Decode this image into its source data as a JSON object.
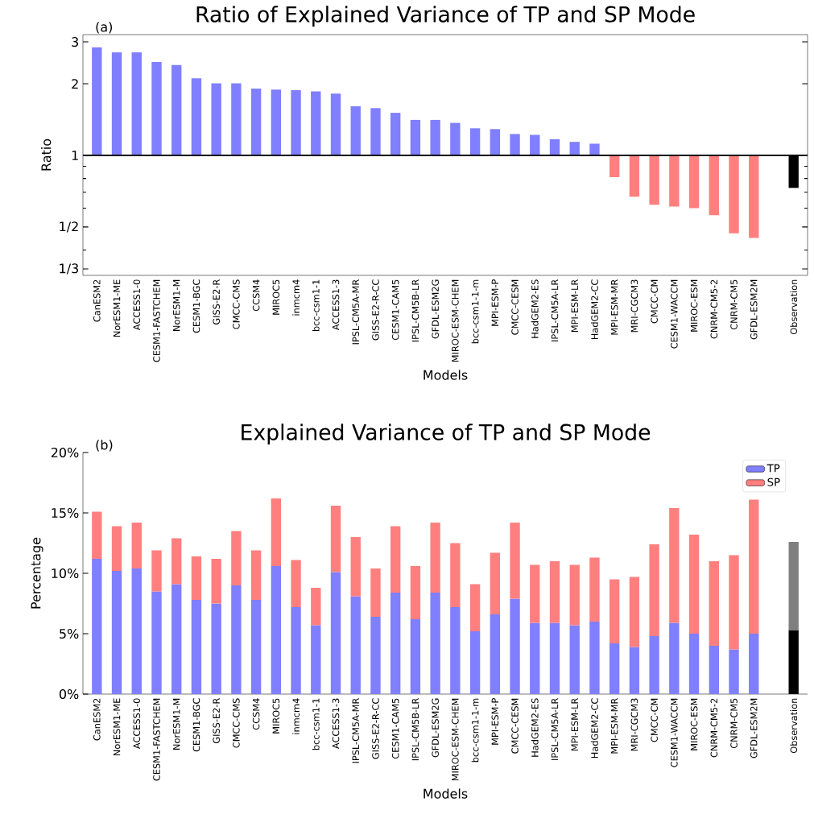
{
  "chart_data": [
    {
      "type": "bar",
      "title": "Ratio of Explained Variance of TP and SP Mode",
      "xlabel": "Models",
      "ylabel": "Ratio",
      "annotations": [
        "(a)"
      ],
      "categories": [
        "CanESM2",
        "NorESM1-ME",
        "ACCESS1-0",
        "CESM1-FASTCHEM",
        "NorESM1-M",
        "CESM1-BGC",
        "GISS-E2-R",
        "CMCC-CMS",
        "CCSM4",
        "MIROC5",
        "inmcm4",
        "bcc-csm1-1",
        "ACCESS1-3",
        "IPSL-CM5A-MR",
        "GISS-E2-R-CC",
        "CESM1-CAM5",
        "IPSL-CM5B-LR",
        "GFDL-ESM2G",
        "MIROC-ESM-CHEM",
        "bcc-csm1-1-m",
        "MPI-ESM-P",
        "CMCC-CESM",
        "HadGEM2-ES",
        "IPSL-CM5A-LR",
        "MPI-ESM-LR",
        "HadGEM2-CC",
        "MPI-ESM-MR",
        "MRI-CGCM3",
        "CMCC-CM",
        "CESM1-WACCM",
        "MIROC-ESM",
        "CNRM-CM5-2",
        "CNRM-CM5",
        "GFDL-ESM2M",
        null,
        "Observation"
      ],
      "values": [
        1.85,
        1.71,
        1.71,
        1.47,
        1.4,
        1.11,
        1.01,
        1.01,
        0.91,
        0.89,
        0.88,
        0.86,
        0.82,
        0.61,
        0.58,
        0.51,
        0.41,
        0.41,
        0.37,
        0.3,
        0.29,
        0.23,
        0.22,
        0.17,
        0.14,
        0.12,
        -0.19,
        -0.33,
        -0.38,
        -0.39,
        -0.4,
        -0.44,
        -0.53,
        -0.55,
        null,
        -0.27
      ],
      "colors": [
        "#7f7fff",
        "#7f7fff",
        "#7f7fff",
        "#7f7fff",
        "#7f7fff",
        "#7f7fff",
        "#7f7fff",
        "#7f7fff",
        "#7f7fff",
        "#7f7fff",
        "#7f7fff",
        "#7f7fff",
        "#7f7fff",
        "#7f7fff",
        "#7f7fff",
        "#7f7fff",
        "#7f7fff",
        "#7f7fff",
        "#7f7fff",
        "#7f7fff",
        "#7f7fff",
        "#7f7fff",
        "#7f7fff",
        "#7f7fff",
        "#7f7fff",
        "#7f7fff",
        "#ff7f7f",
        "#ff7f7f",
        "#ff7f7f",
        "#ff7f7f",
        "#ff7f7f",
        "#ff7f7f",
        "#ff7f7f",
        "#ff7f7f",
        null,
        "#000000"
      ],
      "base": [
        1,
        1,
        1,
        1,
        1,
        1,
        1,
        1,
        1,
        1,
        1,
        1,
        1,
        1,
        1,
        1,
        1,
        1,
        1,
        1,
        1,
        1,
        1,
        1,
        1,
        1,
        1,
        1,
        1,
        1,
        1,
        1,
        1,
        1,
        null,
        1
      ],
      "log": true,
      "ylim": [
        0.313,
        3.22
      ],
      "yticks": [
        {
          "value": 0.3333,
          "label": "1/3"
        },
        {
          "value": 0.4,
          "label": null
        },
        {
          "value": 0.5,
          "label": "1/2"
        },
        {
          "value": 0.6,
          "label": null
        },
        {
          "value": 0.7,
          "label": null
        },
        {
          "value": 0.8,
          "label": null
        },
        {
          "value": 0.9,
          "label": null
        },
        1,
        2,
        3
      ],
      "ref_lines": [
        {
          "axis": "y",
          "value": 1,
          "color": "#000000"
        }
      ]
    },
    {
      "type": "bar",
      "stacked": true,
      "title": "Explained Variance of TP and SP Mode",
      "xlabel": "Models",
      "ylabel": "Percentage",
      "annotations": [
        "(b)"
      ],
      "categories": [
        "CanESM2",
        "NorESM1-ME",
        "ACCESS1-0",
        "CESM1-FASTCHEM",
        "NorESM1-M",
        "CESM1-BGC",
        "GISS-E2-R",
        "CMCC-CMS",
        "CCSM4",
        "MIROC5",
        "inmcm4",
        "bcc-csm1-1",
        "ACCESS1-3",
        "IPSL-CM5A-MR",
        "GISS-E2-R-CC",
        "CESM1-CAM5",
        "IPSL-CM5B-LR",
        "GFDL-ESM2G",
        "MIROC-ESM-CHEM",
        "bcc-csm1-1-m",
        "MPI-ESM-P",
        "CMCC-CESM",
        "HadGEM2-ES",
        "IPSL-CM5A-LR",
        "MPI-ESM-LR",
        "HadGEM2-CC",
        "MPI-ESM-MR",
        "MRI-CGCM3",
        "CMCC-CM",
        "CESM1-WACCM",
        "MIROC-ESM",
        "CNRM-CM5-2",
        "CNRM-CM5",
        "GFDL-ESM2M",
        null,
        "Observation"
      ],
      "series": [
        {
          "name": "TP",
          "color": "#7f7fff",
          "colors": [
            "#7f7fff",
            "#7f7fff",
            "#7f7fff",
            "#7f7fff",
            "#7f7fff",
            "#7f7fff",
            "#7f7fff",
            "#7f7fff",
            "#7f7fff",
            "#7f7fff",
            "#7f7fff",
            "#7f7fff",
            "#7f7fff",
            "#7f7fff",
            "#7f7fff",
            "#7f7fff",
            "#7f7fff",
            "#7f7fff",
            "#7f7fff",
            "#7f7fff",
            "#7f7fff",
            "#7f7fff",
            "#7f7fff",
            "#7f7fff",
            "#7f7fff",
            "#7f7fff",
            "#7f7fff",
            "#7f7fff",
            "#7f7fff",
            "#7f7fff",
            "#7f7fff",
            "#7f7fff",
            "#7f7fff",
            "#7f7fff",
            null,
            "#000000"
          ],
          "values": [
            11.2,
            10.2,
            10.4,
            8.5,
            9.1,
            7.8,
            7.5,
            9.0,
            7.8,
            10.6,
            7.2,
            5.7,
            10.1,
            8.1,
            6.4,
            8.4,
            6.2,
            8.4,
            7.2,
            5.2,
            6.6,
            7.9,
            5.9,
            5.9,
            5.7,
            6.0,
            4.2,
            3.9,
            4.8,
            5.9,
            5.0,
            4.0,
            3.7,
            5.0,
            null,
            5.3
          ]
        },
        {
          "name": "SP",
          "color": "#ff7f7f",
          "colors": [
            "#ff7f7f",
            "#ff7f7f",
            "#ff7f7f",
            "#ff7f7f",
            "#ff7f7f",
            "#ff7f7f",
            "#ff7f7f",
            "#ff7f7f",
            "#ff7f7f",
            "#ff7f7f",
            "#ff7f7f",
            "#ff7f7f",
            "#ff7f7f",
            "#ff7f7f",
            "#ff7f7f",
            "#ff7f7f",
            "#ff7f7f",
            "#ff7f7f",
            "#ff7f7f",
            "#ff7f7f",
            "#ff7f7f",
            "#ff7f7f",
            "#ff7f7f",
            "#ff7f7f",
            "#ff7f7f",
            "#ff7f7f",
            "#ff7f7f",
            "#ff7f7f",
            "#ff7f7f",
            "#ff7f7f",
            "#ff7f7f",
            "#ff7f7f",
            "#ff7f7f",
            "#ff7f7f",
            null,
            "#7f7f7f"
          ],
          "values": [
            3.9,
            3.7,
            3.8,
            3.4,
            3.8,
            3.6,
            3.7,
            4.5,
            4.1,
            5.6,
            3.9,
            3.1,
            5.5,
            4.9,
            4.0,
            5.5,
            4.4,
            5.8,
            5.3,
            3.9,
            5.1,
            6.3,
            4.8,
            5.1,
            5.0,
            5.3,
            5.3,
            5.8,
            7.6,
            9.5,
            8.2,
            7.0,
            7.8,
            11.1,
            null,
            7.3
          ]
        }
      ],
      "ylim": [
        0,
        20
      ],
      "yticks": [
        {
          "value": 0,
          "label": "0%"
        },
        {
          "value": 5,
          "label": "5%"
        },
        {
          "value": 10,
          "label": "10%"
        },
        {
          "value": 15,
          "label": "15%"
        },
        {
          "value": 20,
          "label": "20%"
        }
      ],
      "legend": "top right"
    }
  ]
}
